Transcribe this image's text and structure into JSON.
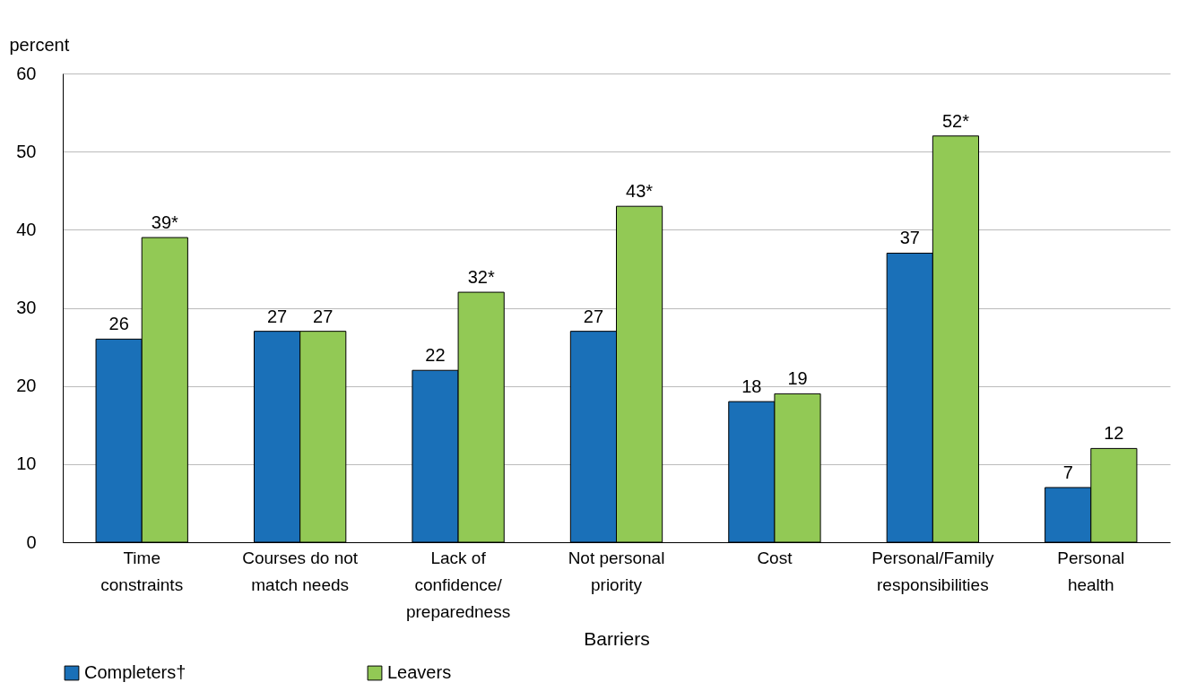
{
  "chart_data": {
    "type": "bar",
    "ylabel": "percent",
    "xlabel": "Barriers",
    "categories": [
      "Time constraints",
      "Courses do not match needs",
      "Lack of confidence/ preparedness",
      "Not personal priority",
      "Cost",
      "Personal/Family responsibilities",
      "Personal health"
    ],
    "series": [
      {
        "name": "Completers†",
        "color": "#1a70b8",
        "values": [
          26,
          27,
          22,
          27,
          18,
          37,
          7
        ],
        "value_labels": [
          "26",
          "27",
          "22",
          "27",
          "18",
          "37",
          "7"
        ]
      },
      {
        "name": "Leavers",
        "color": "#92c955",
        "values": [
          39,
          27,
          32,
          43,
          19,
          52,
          12
        ],
        "value_labels": [
          "39*",
          "27",
          "32*",
          "43*",
          "19",
          "52*",
          "12"
        ]
      }
    ],
    "ylim": [
      0,
      60
    ],
    "yticks": [
      0,
      10,
      20,
      30,
      40,
      50,
      60
    ],
    "grid": "y",
    "legend": "bottom"
  }
}
